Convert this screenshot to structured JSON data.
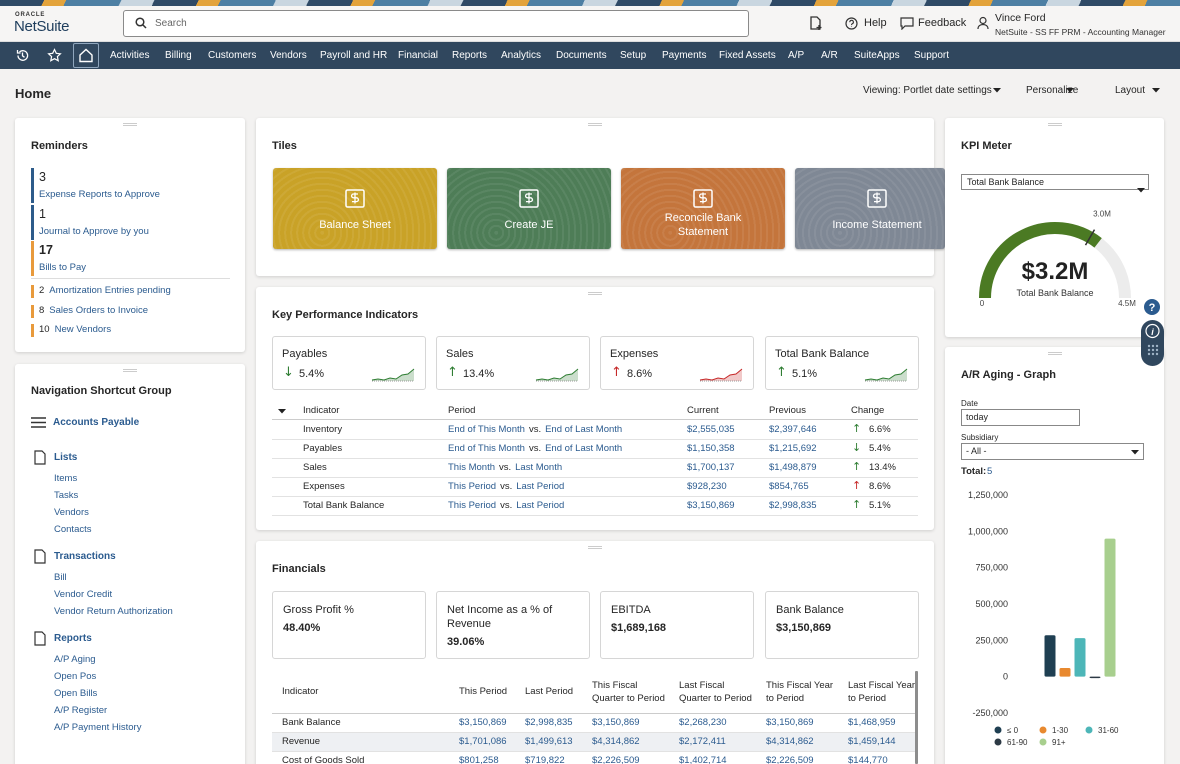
{
  "header": {
    "brand_top": "ORACLE",
    "brand": "NetSuite",
    "search_placeholder": "Search",
    "help": "Help",
    "feedback": "Feedback",
    "user_name": "Vince Ford",
    "user_role": "NetSuite - SS FF PRM - Accounting Manager"
  },
  "nav": [
    "Activities",
    "Billing",
    "Customers",
    "Vendors",
    "Payroll and HR",
    "Financial",
    "Reports",
    "Analytics",
    "Documents",
    "Setup",
    "Payments",
    "Fixed Assets",
    "A/P",
    "A/R",
    "SuiteApps",
    "Support"
  ],
  "page": {
    "title": "Home",
    "viewing": "Viewing: Portlet date settings",
    "personalize": "Personalize",
    "layout": "Layout"
  },
  "reminders": {
    "title": "Reminders",
    "primary": [
      {
        "count": 3,
        "label": "Expense Reports to Approve",
        "color": "#2d5b8a"
      },
      {
        "count": 1,
        "label": "Journal to Approve by you",
        "color": "#2d5b8a"
      },
      {
        "count": 17,
        "label": "Bills to Pay",
        "color": "#e89a3c"
      }
    ],
    "secondary": [
      {
        "count": 2,
        "label": "Amortization Entries pending",
        "color": "#e89a3c"
      },
      {
        "count": 8,
        "label": "Sales Orders to Invoice",
        "color": "#e89a3c"
      },
      {
        "count": 10,
        "label": "New Vendors",
        "color": "#e89a3c"
      }
    ]
  },
  "shortcuts": {
    "title": "Navigation Shortcut Group",
    "top": "Accounts Payable",
    "groups": [
      {
        "title": "Lists",
        "items": [
          "Items",
          "Tasks",
          "Vendors",
          "Contacts"
        ]
      },
      {
        "title": "Transactions",
        "items": [
          "Bill",
          "Vendor Credit",
          "Vendor Return Authorization"
        ]
      },
      {
        "title": "Reports",
        "items": [
          "A/P Aging",
          "Open Pos",
          "Open Bills",
          "A/P Register",
          "A/P Payment History"
        ]
      }
    ]
  },
  "tiles": {
    "title": "Tiles",
    "items": [
      {
        "label": "Balance Sheet",
        "color": "#c9a227"
      },
      {
        "label": "Create JE",
        "color": "#4e7d57"
      },
      {
        "label": "Reconcile Bank Statement",
        "color": "#c4753c"
      },
      {
        "label": "Income Statement",
        "color": "#7f8895"
      }
    ]
  },
  "kpi": {
    "title": "Key Performance Indicators",
    "cards": [
      {
        "name": "Payables",
        "arrow": "↓",
        "change": "5.4%",
        "color": "#2e7d32"
      },
      {
        "name": "Sales",
        "arrow": "↑",
        "change": "13.4%",
        "color": "#2e7d32"
      },
      {
        "name": "Expenses",
        "arrow": "↑",
        "change": "8.6%",
        "color": "#c62828"
      },
      {
        "name": "Total Bank Balance",
        "arrow": "↑",
        "change": "5.1%",
        "color": "#2e7d32"
      }
    ],
    "columns": [
      "Indicator",
      "Period",
      "Current",
      "Previous",
      "Change"
    ],
    "rows": [
      {
        "indicator": "Inventory",
        "period": {
          "from": "End of This Month",
          "sep": "vs.",
          "to": "End of Last Month"
        },
        "current": "$2,555,035",
        "previous": "$2,397,646",
        "arrow": "↑",
        "color": "#2e7d32",
        "change": "6.6%"
      },
      {
        "indicator": "Payables",
        "period": {
          "from": "End of This Month",
          "sep": "vs.",
          "to": "End of Last Month"
        },
        "current": "$1,150,358",
        "previous": "$1,215,692",
        "arrow": "↓",
        "color": "#2e7d32",
        "change": "5.4%"
      },
      {
        "indicator": "Sales",
        "period": {
          "from": "This Month",
          "sep": "vs.",
          "to": "Last Month"
        },
        "current": "$1,700,137",
        "previous": "$1,498,879",
        "arrow": "↑",
        "color": "#2e7d32",
        "change": "13.4%"
      },
      {
        "indicator": "Expenses",
        "period": {
          "from": "This Period",
          "sep": "vs.",
          "to": "Last Period"
        },
        "current": "$928,230",
        "previous": "$854,765",
        "arrow": "↑",
        "color": "#c62828",
        "change": "8.6%"
      },
      {
        "indicator": "Total Bank Balance",
        "period": {
          "from": "This Period",
          "sep": "vs.",
          "to": "Last Period"
        },
        "current": "$3,150,869",
        "previous": "$2,998,835",
        "arrow": "↑",
        "color": "#2e7d32",
        "change": "5.1%"
      }
    ]
  },
  "financials": {
    "title": "Financials",
    "cards": [
      {
        "name": "Gross Profit %",
        "value": "48.40%"
      },
      {
        "name": "Net Income as a % of Revenue",
        "value": "39.06%"
      },
      {
        "name": "EBITDA",
        "value": "$1,689,168"
      },
      {
        "name": "Bank Balance",
        "value": "$3,150,869"
      }
    ],
    "columns": [
      "Indicator",
      "This Period",
      "Last Period",
      "This Fiscal Quarter to Period",
      "Last Fiscal Quarter to Period",
      "This Fiscal Year to Period",
      "Last Fiscal Year to Period"
    ],
    "rows": [
      [
        "Bank Balance",
        "$3,150,869",
        "$2,998,835",
        "$3,150,869",
        "$2,268,230",
        "$3,150,869",
        "$1,468,959"
      ],
      [
        "Revenue",
        "$1,701,086",
        "$1,499,613",
        "$4,314,862",
        "$2,172,411",
        "$4,314,862",
        "$1,459,144"
      ],
      [
        "Cost of Goods Sold",
        "$801,258",
        "$719,822",
        "$2,226,509",
        "$1,402,714",
        "$2,226,509",
        "$144,770"
      ]
    ]
  },
  "kpi_meter": {
    "title": "KPI Meter",
    "select": "Total Bank Balance",
    "gauge": {
      "value": 3200000,
      "value_label": "$3.2M",
      "label": "Total Bank Balance",
      "min": 0,
      "max": 4500000,
      "max_label": "4.5M",
      "target": 3000000,
      "target_label": "3.0M",
      "color": "#4b7a23"
    }
  },
  "ar_aging": {
    "title": "A/R Aging - Graph",
    "date_label": "Date",
    "date_value": "today",
    "subsidiary_label": "Subsidiary",
    "subsidiary_value": "- All -",
    "total_label": "Total:",
    "total_value": 5
  },
  "chart_data": {
    "type": "bar",
    "categories": [
      "≤ 0",
      "1-30",
      "31-60",
      "61-90",
      "91+"
    ],
    "values": [
      285000,
      60000,
      265000,
      -10000,
      950000
    ],
    "colors": [
      "#1f3f52",
      "#e8892f",
      "#4db6b8",
      "#2d3a45",
      "#a8cf8e"
    ],
    "ylim": [
      -250000,
      1250000
    ],
    "yticks": [
      {
        "value": -250000,
        "label": "-250,000"
      },
      0,
      {
        "value": 250000,
        "label": "250,000"
      },
      {
        "value": 500000,
        "label": "500,000"
      },
      {
        "value": 750000,
        "label": "750,000"
      },
      {
        "value": 1000000,
        "label": "1,000,000"
      },
      {
        "value": 1250000,
        "label": "1,250,000"
      }
    ]
  }
}
